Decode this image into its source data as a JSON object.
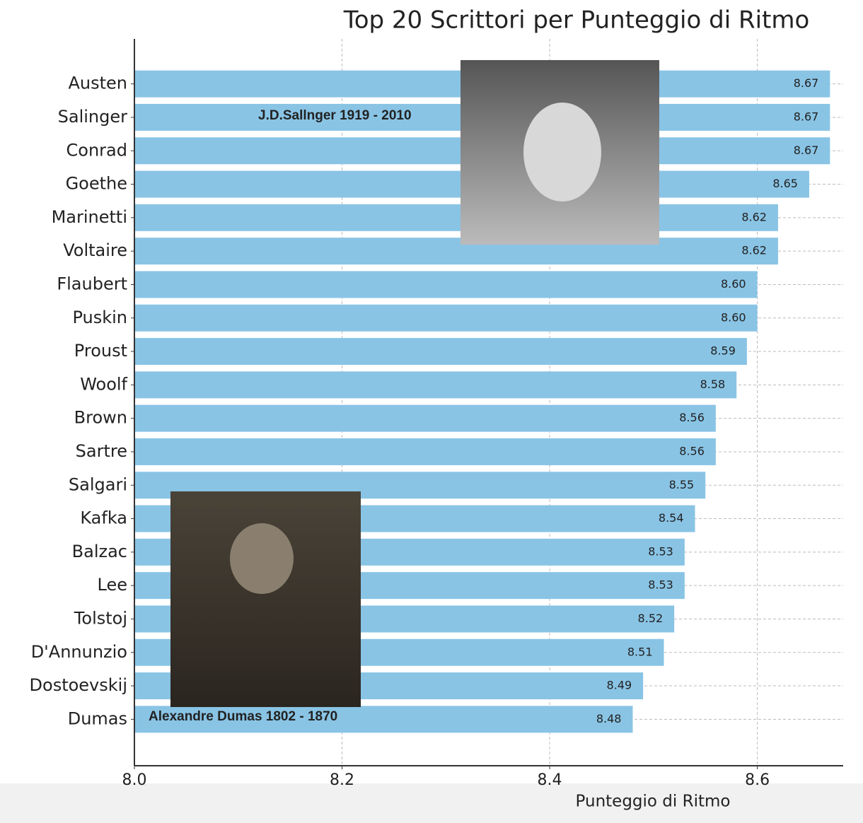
{
  "chart_data": {
    "type": "barh",
    "title": "Top 20 Scrittori per Punteggio di Ritmo",
    "xlabel": "Punteggio di Ritmo",
    "categories": [
      "Austen",
      "Salinger",
      "Conrad",
      "Goethe",
      "Marinetti",
      "Voltaire",
      "Flaubert",
      "Puskin",
      "Proust",
      "Woolf",
      "Brown",
      "Sartre",
      "Salgari",
      "Kafka",
      "Balzac",
      "Lee",
      "Tolstoj",
      "D'Annunzio",
      "Dostoevskij",
      "Dumas"
    ],
    "values": [
      8.67,
      8.67,
      8.67,
      8.65,
      8.62,
      8.62,
      8.6,
      8.6,
      8.59,
      8.58,
      8.56,
      8.56,
      8.55,
      8.54,
      8.53,
      8.53,
      8.52,
      8.51,
      8.49,
      8.48
    ],
    "value_labels": [
      "8.67",
      "8.67",
      "8.67",
      "8.65",
      "8.62",
      "8.62",
      "8.60",
      "8.60",
      "8.59",
      "8.58",
      "8.56",
      "8.56",
      "8.55",
      "8.54",
      "8.53",
      "8.53",
      "8.52",
      "8.51",
      "8.49",
      "8.48"
    ],
    "color": "#89c4e5",
    "xlim": [
      8.0,
      8.68
    ],
    "xticks": [
      {
        "value": 8.0,
        "label": "8.0"
      },
      {
        "value": 8.2,
        "label": "8.2"
      },
      {
        "value": 8.4,
        "label": "8.4"
      },
      {
        "value": 8.6,
        "label": "8.6"
      }
    ],
    "grid": true,
    "annotations": [
      "J.D.Sallnger 1919 - 2010",
      "Alexandre Dumas 1802 - 1870"
    ]
  }
}
